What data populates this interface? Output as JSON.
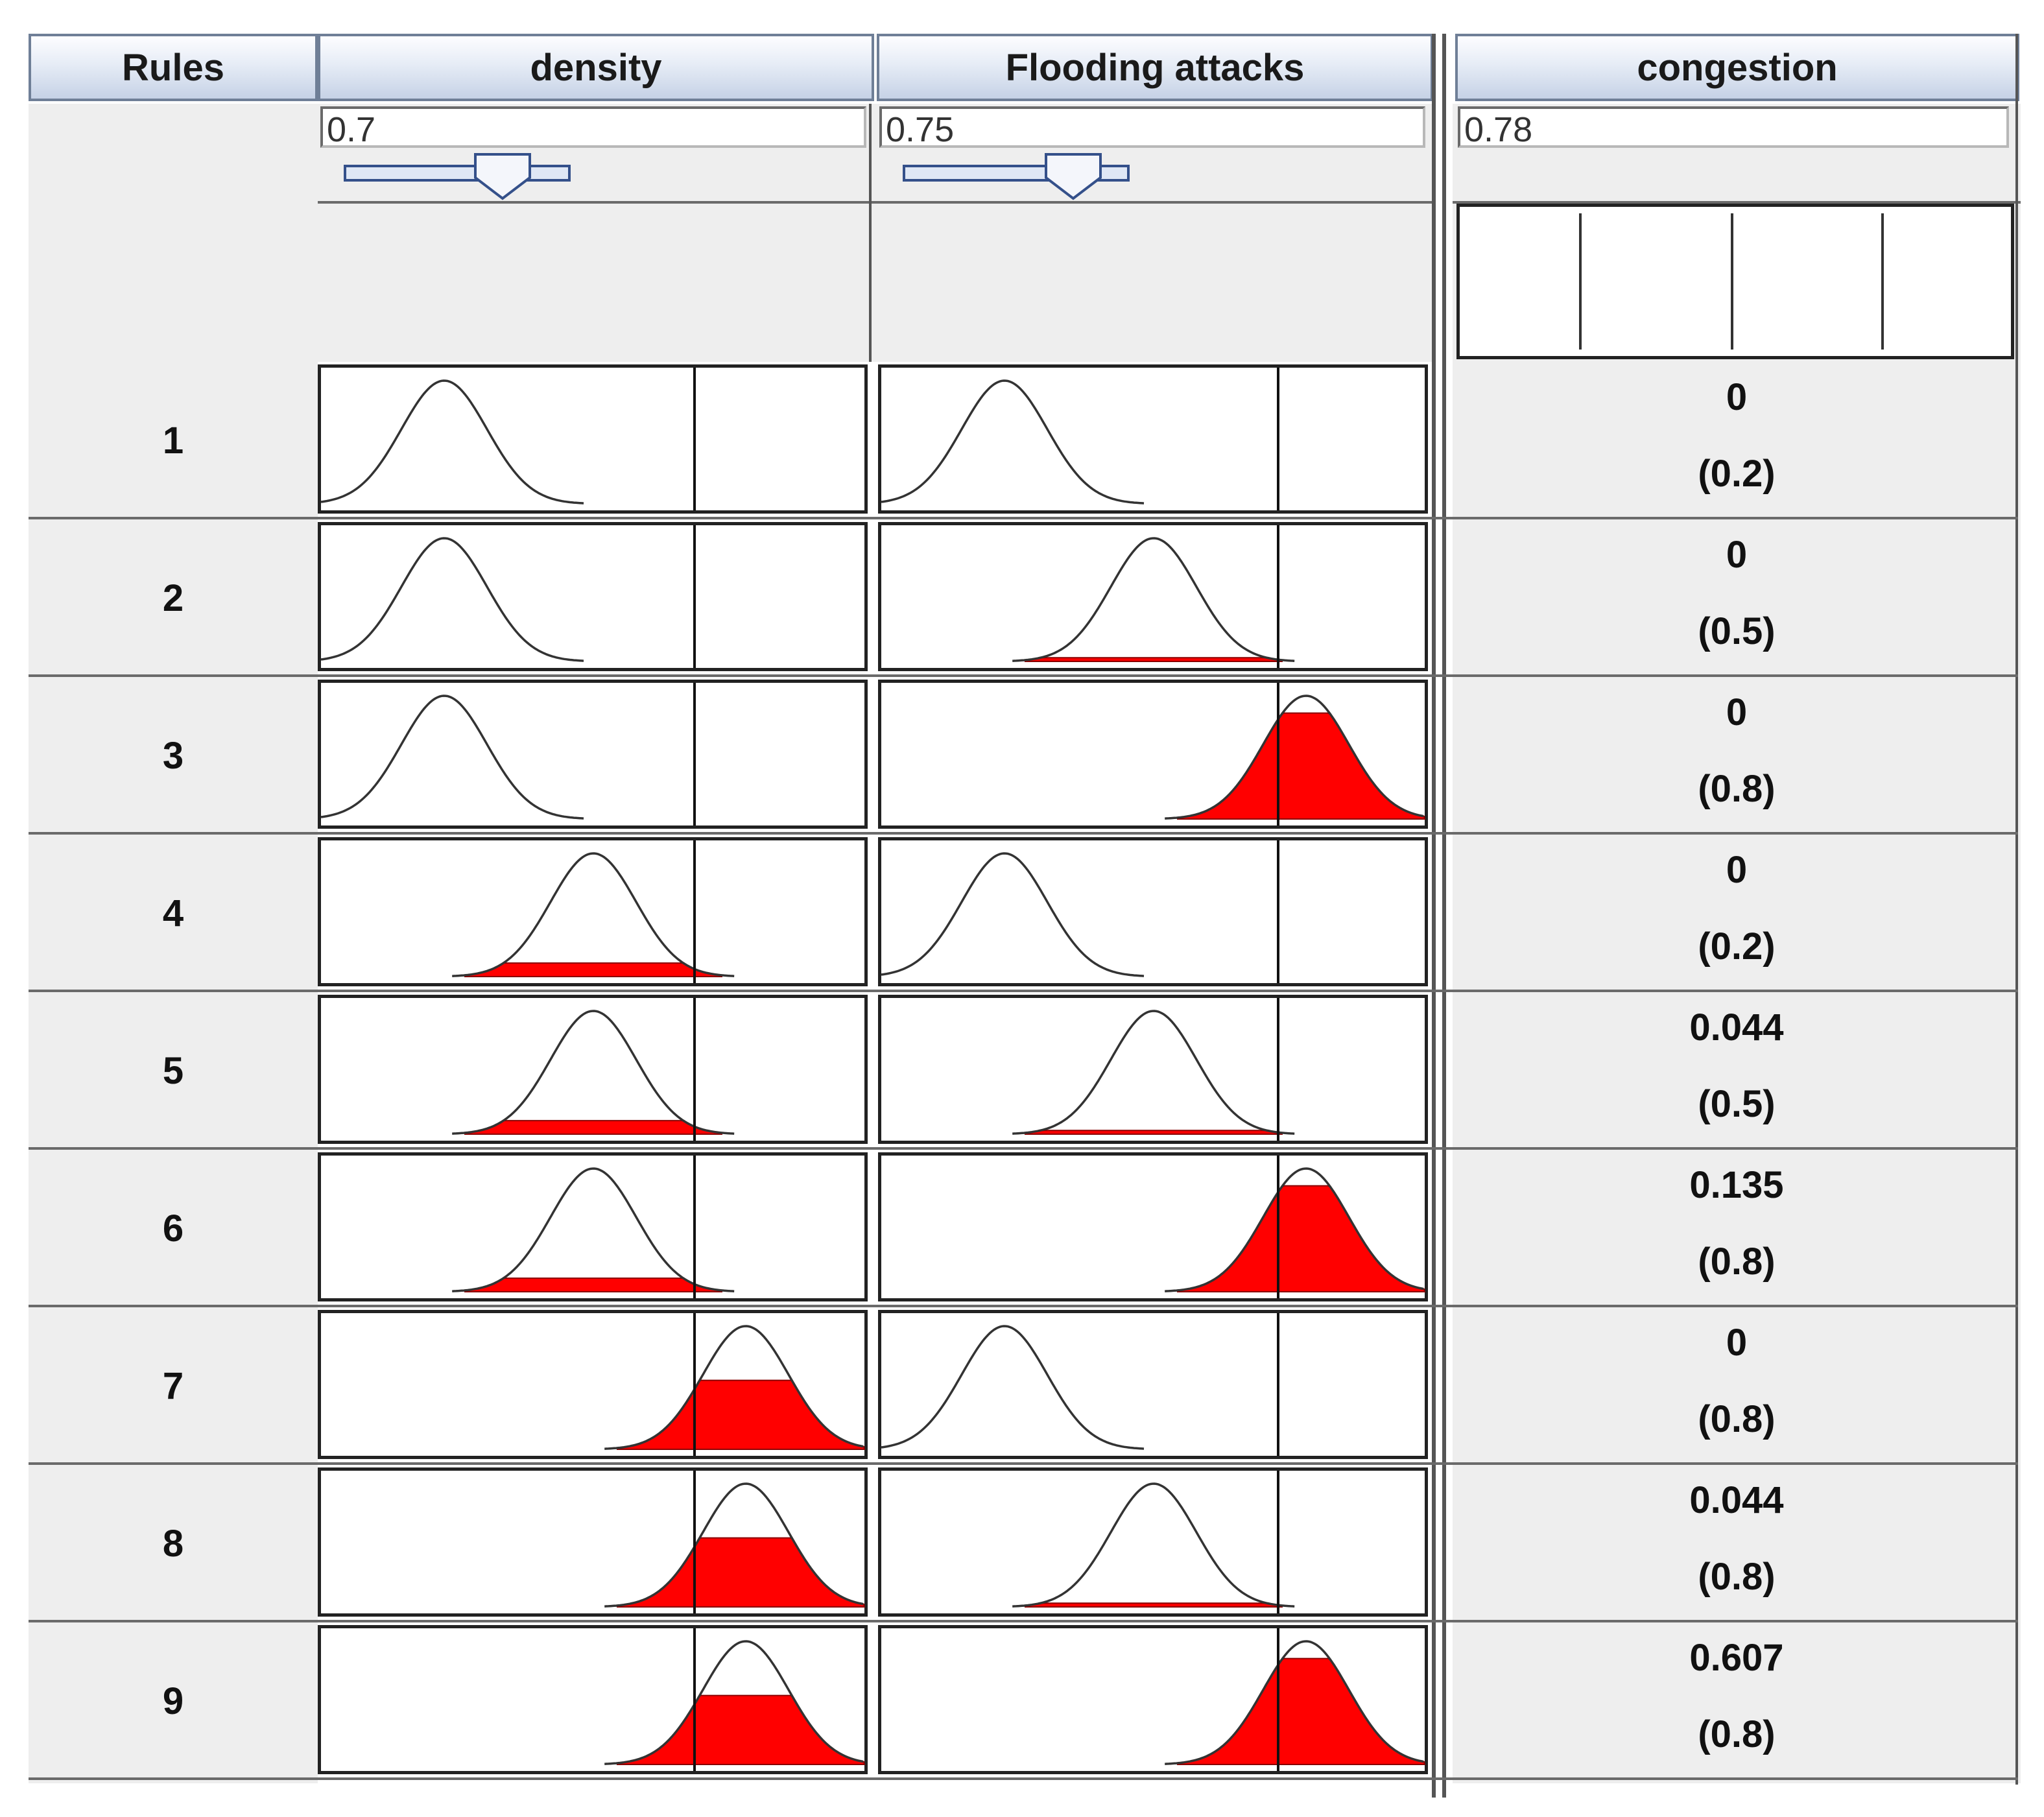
{
  "headers": {
    "rules": "Rules",
    "density": "density",
    "flooding": "Flooding attacks",
    "congestion": "congestion"
  },
  "inputs": {
    "density": "0.7",
    "flooding": "0.75",
    "congestion": "0.78"
  },
  "sliders": {
    "density": 0.7,
    "flooding": 0.75
  },
  "colors": {
    "activation_fill": "#ff0000",
    "curve": "#333333"
  },
  "membership_sets": [
    "low",
    "medium",
    "high"
  ],
  "rules": [
    {
      "number": "1",
      "density_set": "low",
      "flooding_set": "low",
      "density_degree": 0.0,
      "flooding_degree": 0.0,
      "output": "0",
      "weight": "(0.2)"
    },
    {
      "number": "2",
      "density_set": "low",
      "flooding_set": "medium",
      "density_degree": 0.0,
      "flooding_degree": 0.03,
      "output": "0",
      "weight": "(0.5)"
    },
    {
      "number": "3",
      "density_set": "low",
      "flooding_set": "high",
      "density_degree": 0.0,
      "flooding_degree": 0.86,
      "output": "0",
      "weight": "(0.8)"
    },
    {
      "number": "4",
      "density_set": "medium",
      "flooding_set": "low",
      "density_degree": 0.11,
      "flooding_degree": 0.0,
      "output": "0",
      "weight": "(0.2)"
    },
    {
      "number": "5",
      "density_set": "medium",
      "flooding_set": "medium",
      "density_degree": 0.11,
      "flooding_degree": 0.03,
      "output": "0.044",
      "weight": "(0.5)"
    },
    {
      "number": "6",
      "density_set": "medium",
      "flooding_set": "high",
      "density_degree": 0.11,
      "flooding_degree": 0.86,
      "output": "0.135",
      "weight": "(0.8)"
    },
    {
      "number": "7",
      "density_set": "high",
      "flooding_set": "low",
      "density_degree": 0.56,
      "flooding_degree": 0.0,
      "output": "0",
      "weight": "(0.8)"
    },
    {
      "number": "8",
      "density_set": "high",
      "flooding_set": "medium",
      "density_degree": 0.56,
      "flooding_degree": 0.03,
      "output": "0.044",
      "weight": "(0.8)"
    },
    {
      "number": "9",
      "density_set": "high",
      "flooding_set": "high",
      "density_degree": 0.56,
      "flooding_degree": 0.86,
      "output": "0.607",
      "weight": "(0.8)"
    }
  ]
}
